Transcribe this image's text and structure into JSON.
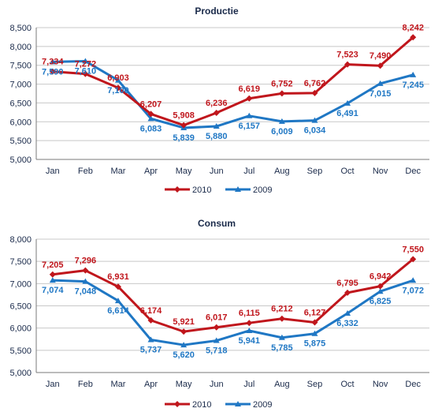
{
  "colors": {
    "2010": "#c0161c",
    "2009": "#1f77c4"
  },
  "chart_data": [
    {
      "type": "line",
      "title": "Productie",
      "xlabel": "",
      "ylabel": "",
      "categories": [
        "Jan",
        "Feb",
        "Mar",
        "Apr",
        "May",
        "Jun",
        "Jul",
        "Aug",
        "Sep",
        "Oct",
        "Nov",
        "Dec"
      ],
      "ylim": [
        5000,
        8500
      ],
      "yticks": [
        "5,000",
        "5,500",
        "6,000",
        "6,500",
        "7,000",
        "7,500",
        "8,000",
        "8,500"
      ],
      "grid": true,
      "legend_position": "bottom",
      "series": [
        {
          "name": "2010",
          "values": [
            7334,
            7272,
            6903,
            6207,
            5908,
            6236,
            6619,
            6752,
            6762,
            7523,
            7490,
            8242
          ],
          "labels": [
            "7,334",
            "7,272",
            "6,903",
            "6,207",
            "5,908",
            "6,236",
            "6,619",
            "6,752",
            "6,762",
            "7,523",
            "7,490",
            "8,242"
          ]
        },
        {
          "name": "2009",
          "values": [
            7590,
            7610,
            7100,
            6083,
            5839,
            5880,
            6157,
            6009,
            6034,
            6491,
            7015,
            7245
          ],
          "labels": [
            "7,590",
            "7,610",
            "7,100",
            "6,083",
            "5,839",
            "5,880",
            "6,157",
            "6,009",
            "6,034",
            "6,491",
            "7,015",
            "7,245"
          ]
        }
      ]
    },
    {
      "type": "line",
      "title": "Consum",
      "xlabel": "",
      "ylabel": "",
      "categories": [
        "Jan",
        "Feb",
        "Mar",
        "Apr",
        "May",
        "Jun",
        "Jul",
        "Aug",
        "Sep",
        "Oct",
        "Nov",
        "Dec"
      ],
      "ylim": [
        5000,
        8000
      ],
      "yticks": [
        "5,000",
        "5,500",
        "6,000",
        "6,500",
        "7,000",
        "7,500",
        "8,000"
      ],
      "grid": true,
      "legend_position": "bottom",
      "series": [
        {
          "name": "2010",
          "values": [
            7205,
            7296,
            6931,
            6174,
            5921,
            6017,
            6115,
            6212,
            6127,
            6795,
            6942,
            7550
          ],
          "labels": [
            "7,205",
            "7,296",
            "6,931",
            "6,174",
            "5,921",
            "6,017",
            "6,115",
            "6,212",
            "6,127",
            "6,795",
            "6,942",
            "7,550"
          ]
        },
        {
          "name": "2009",
          "values": [
            7074,
            7048,
            6614,
            5737,
            5620,
            5718,
            5941,
            5785,
            5875,
            6332,
            6825,
            7072
          ],
          "labels": [
            "7,074",
            "7,048",
            "6,614",
            "5,737",
            "5,620",
            "5,718",
            "5,941",
            "5,785",
            "5,875",
            "6,332",
            "6,825",
            "7,072"
          ]
        }
      ]
    }
  ]
}
